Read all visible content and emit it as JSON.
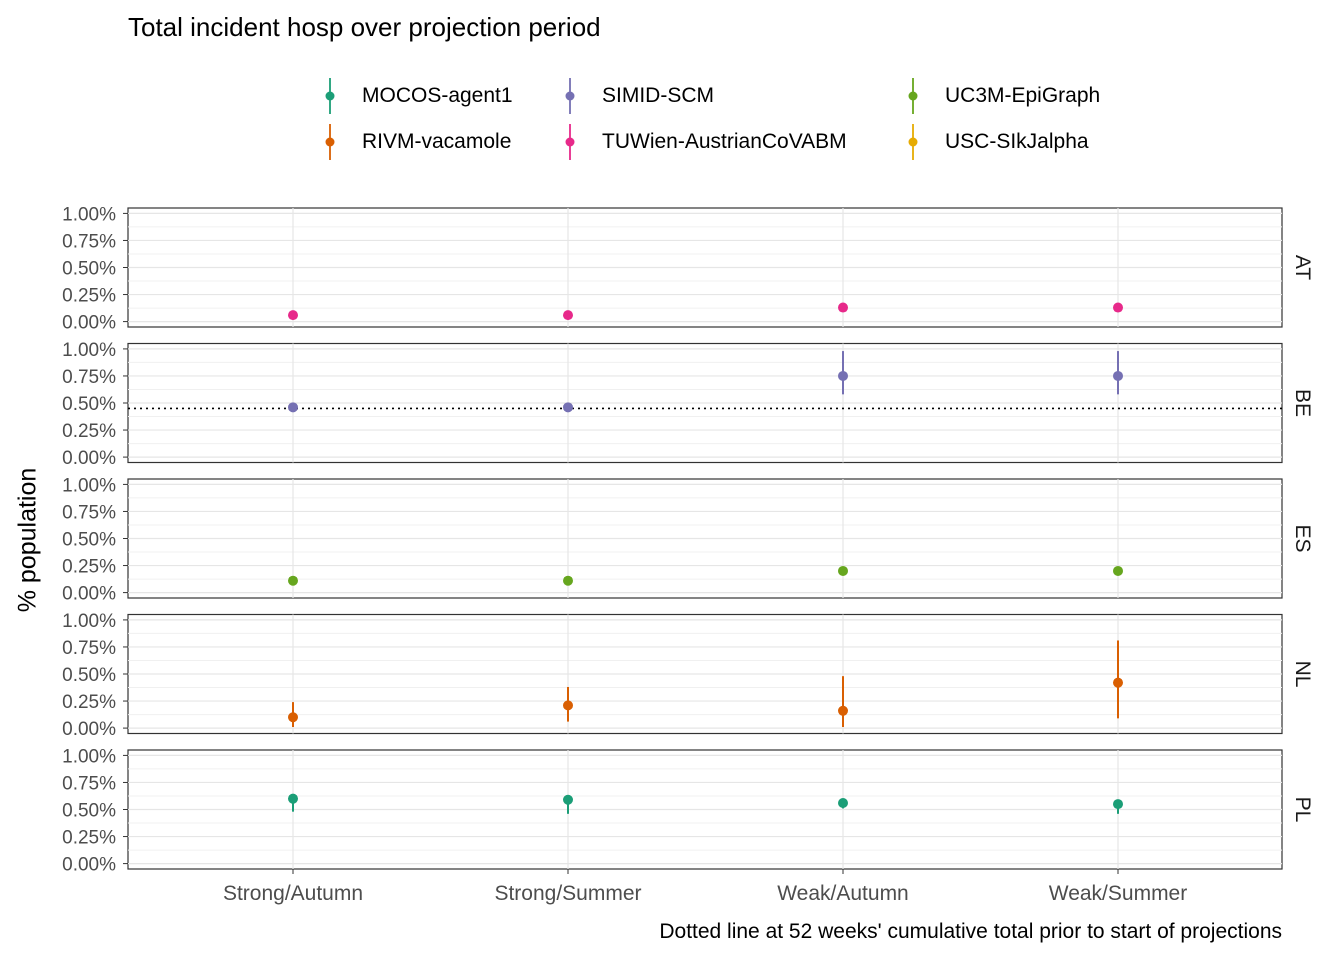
{
  "title": "Total incident hosp over projection period",
  "ylabel": "% population",
  "caption": "Dotted line at 52 weeks' cumulative total prior to start of projections",
  "legend": [
    {
      "name": "MOCOS-agent1",
      "color": "#1B9E77"
    },
    {
      "name": "RIVM-vacamole",
      "color": "#D95F02"
    },
    {
      "name": "SIMID-SCM",
      "color": "#7570B3"
    },
    {
      "name": "TUWien-AustrianCoVABM",
      "color": "#E7298A"
    },
    {
      "name": "UC3M-EpiGraph",
      "color": "#66A61E"
    },
    {
      "name": "USC-SIkJalpha",
      "color": "#E6AB02"
    }
  ],
  "chart_data": {
    "type": "scatter",
    "facets": [
      "AT",
      "BE",
      "ES",
      "NL",
      "PL"
    ],
    "categories": [
      "Strong/Autumn",
      "Strong/Summer",
      "Weak/Autumn",
      "Weak/Summer"
    ],
    "ylim": [
      0,
      1.0
    ],
    "yticks": [
      "0.00%",
      "0.25%",
      "0.50%",
      "0.75%",
      "1.00%"
    ],
    "yticks_values": [
      0,
      0.25,
      0.5,
      0.75,
      1.0
    ],
    "grid": true,
    "legend_position": "top",
    "reference_line": {
      "facet": "BE",
      "value": 0.45,
      "style": "dotted"
    },
    "series": [
      {
        "name": "TUWien-AustrianCoVABM",
        "facet": "AT",
        "color": "#E7298A",
        "values": [
          0.06,
          0.06,
          0.13,
          0.13
        ],
        "lower": [
          0.06,
          0.06,
          0.13,
          0.13
        ],
        "upper": [
          0.06,
          0.06,
          0.13,
          0.13
        ]
      },
      {
        "name": "SIMID-SCM",
        "facet": "BE",
        "color": "#7570B3",
        "values": [
          0.46,
          0.46,
          0.75,
          0.75
        ],
        "lower": [
          0.42,
          0.42,
          0.58,
          0.58
        ],
        "upper": [
          0.5,
          0.5,
          0.98,
          0.98
        ]
      },
      {
        "name": "UC3M-EpiGraph",
        "facet": "ES",
        "color": "#66A61E",
        "values": [
          0.11,
          0.11,
          0.2,
          0.2
        ],
        "lower": [
          0.11,
          0.11,
          0.2,
          0.2
        ],
        "upper": [
          0.11,
          0.11,
          0.2,
          0.2
        ]
      },
      {
        "name": "RIVM-vacamole",
        "facet": "NL",
        "color": "#D95F02",
        "values": [
          0.1,
          0.21,
          0.16,
          0.42
        ],
        "lower": [
          0.01,
          0.06,
          0.01,
          0.09
        ],
        "upper": [
          0.24,
          0.38,
          0.48,
          0.81
        ]
      },
      {
        "name": "MOCOS-agent1",
        "facet": "PL",
        "color": "#1B9E77",
        "values": [
          0.6,
          0.59,
          0.56,
          0.55
        ],
        "lower": [
          0.48,
          0.46,
          0.51,
          0.46
        ],
        "upper": [
          0.6,
          0.59,
          0.56,
          0.55
        ]
      }
    ]
  }
}
